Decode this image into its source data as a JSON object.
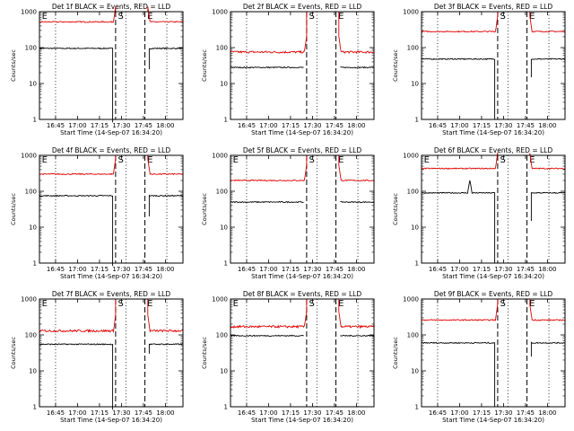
{
  "colors": {
    "events": "#000000",
    "lld": "#e00000",
    "axis": "#000000"
  },
  "chart_data": [
    {
      "type": "line",
      "title": "Det 1f BLACK = Events, RED = LLD",
      "xlabel": "Start Time (14-Sep-07 16:34:20)",
      "ylabel": "Counts/sec",
      "y_scale": "log",
      "ylim": [
        1,
        1000
      ],
      "xlim": [
        "16:34",
        "18:12"
      ],
      "xticks": [
        "16:45",
        "17:00",
        "17:15",
        "17:30",
        "17:45",
        "18:00"
      ],
      "yticks": [
        "1",
        "10",
        "100",
        "1000"
      ],
      "dotted_lines": [
        "16:45",
        "17:33",
        "18:01"
      ],
      "dashed_lines": [
        "17:26",
        "17:46"
      ],
      "markers": [
        {
          "label": "E",
          "x": "16:35"
        },
        {
          "label": "S",
          "x": "17:27"
        },
        {
          "label": "E",
          "x": "17:47"
        }
      ],
      "series": [
        {
          "name": "BLACK = Events",
          "color": "black",
          "level": 95,
          "gap": [
            "17:24",
            "17:49"
          ],
          "low_ends": [
            0.5,
            25
          ]
        },
        {
          "name": "RED = LLD",
          "color": "red",
          "level": 520,
          "gap": [
            "17:26",
            "17:48"
          ],
          "high_ends": [
            1000,
            1000
          ]
        }
      ]
    },
    {
      "type": "line",
      "title": "Det 2f BLACK = Events, RED = LLD",
      "xlabel": "Start Time (14-Sep-07 16:34:20)",
      "ylabel": "Counts/sec",
      "y_scale": "log",
      "ylim": [
        1,
        1000
      ],
      "xlim": [
        "16:34",
        "18:12"
      ],
      "xticks": [
        "16:45",
        "17:00",
        "17:15",
        "17:30",
        "17:45",
        "18:00"
      ],
      "yticks": [
        "1",
        "10",
        "100",
        "1000"
      ],
      "dotted_lines": [
        "16:45",
        "17:33",
        "18:01"
      ],
      "dashed_lines": [
        "17:26",
        "17:46"
      ],
      "markers": [
        {
          "label": "S",
          "x": "17:27"
        },
        {
          "label": "E",
          "x": "17:47"
        }
      ],
      "series": [
        {
          "name": "BLACK = Events",
          "color": "black",
          "level": 28,
          "gap": [
            "17:24",
            "17:49"
          ]
        },
        {
          "name": "RED = LLD",
          "color": "red",
          "level": 75,
          "gap": [
            "17:26",
            "17:48"
          ],
          "high_ends": [
            1000,
            1000
          ]
        }
      ]
    },
    {
      "type": "line",
      "title": "Det 3f BLACK = Events, RED = LLD",
      "xlabel": "Start Time (14-Sep-07 16:34:20)",
      "ylabel": "Counts/sec",
      "y_scale": "log",
      "ylim": [
        1,
        1000
      ],
      "xlim": [
        "16:34",
        "18:12"
      ],
      "xticks": [
        "16:45",
        "17:00",
        "17:15",
        "17:30",
        "17:45",
        "18:00"
      ],
      "yticks": [
        "1",
        "10",
        "100",
        "1000"
      ],
      "dotted_lines": [
        "16:45",
        "17:33",
        "18:01"
      ],
      "dashed_lines": [
        "17:26",
        "17:46"
      ],
      "markers": [
        {
          "label": "S",
          "x": "17:27"
        },
        {
          "label": "E",
          "x": "17:47"
        }
      ],
      "series": [
        {
          "name": "BLACK = Events",
          "color": "black",
          "level": 48,
          "gap": [
            "17:24",
            "17:49"
          ],
          "low_ends": [
            1,
            15
          ]
        },
        {
          "name": "RED = LLD",
          "color": "red",
          "level": 280,
          "gap": [
            "17:26",
            "17:48"
          ],
          "high_ends": [
            1000,
            1000
          ]
        }
      ]
    },
    {
      "type": "line",
      "title": "Det 4f BLACK = Events, RED = LLD",
      "xlabel": "Start Time (14-Sep-07 16:34:20)",
      "ylabel": "Counts/sec",
      "y_scale": "log",
      "ylim": [
        1,
        1000
      ],
      "xlim": [
        "16:34",
        "18:12"
      ],
      "xticks": [
        "16:45",
        "17:00",
        "17:15",
        "17:30",
        "17:45",
        "18:00"
      ],
      "yticks": [
        "1",
        "10",
        "100",
        "1000"
      ],
      "dotted_lines": [
        "16:45",
        "17:33",
        "18:01"
      ],
      "dashed_lines": [
        "17:26",
        "17:46"
      ],
      "markers": [
        {
          "label": "E",
          "x": "16:35"
        },
        {
          "label": "S",
          "x": "17:27"
        },
        {
          "label": "E",
          "x": "17:47"
        }
      ],
      "series": [
        {
          "name": "BLACK = Events",
          "color": "black",
          "level": 75,
          "gap": [
            "17:24",
            "17:49"
          ],
          "low_ends": [
            0.5,
            20
          ]
        },
        {
          "name": "RED = LLD",
          "color": "red",
          "level": 300,
          "gap": [
            "17:26",
            "17:48"
          ],
          "high_ends": [
            1000,
            1000
          ]
        }
      ]
    },
    {
      "type": "line",
      "title": "Det 5f BLACK = Events, RED = LLD",
      "xlabel": "Start Time (14-Sep-07 16:34:20)",
      "ylabel": "Counts/sec",
      "y_scale": "log",
      "ylim": [
        1,
        1000
      ],
      "xlim": [
        "16:34",
        "18:12"
      ],
      "xticks": [
        "16:45",
        "17:00",
        "17:15",
        "17:30",
        "17:45",
        "18:00"
      ],
      "yticks": [
        "1",
        "10",
        "100",
        "1000"
      ],
      "dotted_lines": [
        "16:45",
        "17:33",
        "18:01"
      ],
      "dashed_lines": [
        "17:26",
        "17:46"
      ],
      "markers": [
        {
          "label": "E",
          "x": "16:35"
        },
        {
          "label": "S",
          "x": "17:27"
        },
        {
          "label": "E",
          "x": "17:47"
        }
      ],
      "series": [
        {
          "name": "BLACK = Events",
          "color": "black",
          "level": 50,
          "gap": [
            "17:24",
            "17:49"
          ]
        },
        {
          "name": "RED = LLD",
          "color": "red",
          "level": 200,
          "gap": [
            "17:26",
            "17:48"
          ],
          "high_ends": [
            1000,
            1000
          ]
        }
      ]
    },
    {
      "type": "line",
      "title": "Det 6f BLACK = Events, RED = LLD",
      "xlabel": "Start Time (14-Sep-07 16:34:20)",
      "ylabel": "Counts/sec",
      "y_scale": "log",
      "ylim": [
        1,
        1000
      ],
      "xlim": [
        "16:34",
        "18:12"
      ],
      "xticks": [
        "16:45",
        "17:00",
        "17:15",
        "17:30",
        "17:45",
        "18:00"
      ],
      "yticks": [
        "1",
        "10",
        "100",
        "1000"
      ],
      "dotted_lines": [
        "16:45",
        "17:33",
        "18:01"
      ],
      "dashed_lines": [
        "17:26",
        "17:46"
      ],
      "markers": [
        {
          "label": "E",
          "x": "16:35"
        },
        {
          "label": "S",
          "x": "17:27"
        },
        {
          "label": "E",
          "x": "17:47"
        }
      ],
      "series": [
        {
          "name": "BLACK = Events",
          "color": "black",
          "level": 90,
          "gap": [
            "17:24",
            "17:49"
          ],
          "low_ends": [
            1,
            15
          ],
          "spike": {
            "x": "17:07",
            "peak": 200
          }
        },
        {
          "name": "RED = LLD",
          "color": "red",
          "level": 430,
          "gap": [
            "17:26",
            "17:48"
          ],
          "high_ends": [
            1000,
            1000
          ]
        }
      ]
    },
    {
      "type": "line",
      "title": "Det 7f BLACK = Events, RED = LLD",
      "xlabel": "Start Time (14-Sep-07 16:34:20)",
      "ylabel": "Counts/sec",
      "y_scale": "log",
      "ylim": [
        1,
        1000
      ],
      "xlim": [
        "16:34",
        "18:12"
      ],
      "xticks": [
        "16:45",
        "17:00",
        "17:15",
        "17:30",
        "17:45",
        "18:00"
      ],
      "yticks": [
        "1",
        "10",
        "100",
        "1000"
      ],
      "dotted_lines": [
        "16:45",
        "17:33",
        "18:01"
      ],
      "dashed_lines": [
        "17:26",
        "17:46"
      ],
      "markers": [
        {
          "label": "E",
          "x": "16:35"
        },
        {
          "label": "S",
          "x": "17:27"
        },
        {
          "label": "E",
          "x": "17:47"
        }
      ],
      "series": [
        {
          "name": "BLACK = Events",
          "color": "black",
          "level": 55,
          "gap": [
            "17:24",
            "17:49"
          ],
          "low_ends": [
            0.5,
            30
          ]
        },
        {
          "name": "RED = LLD",
          "color": "red",
          "level": 130,
          "gap": [
            "17:26",
            "17:48"
          ],
          "high_ends": [
            1000,
            1000
          ]
        }
      ]
    },
    {
      "type": "line",
      "title": "Det 8f BLACK = Events, RED = LLD",
      "xlabel": "Start Time (14-Sep-07 16:34:20)",
      "ylabel": "Counts/sec",
      "y_scale": "log",
      "ylim": [
        1,
        1000
      ],
      "xlim": [
        "16:34",
        "18:12"
      ],
      "xticks": [
        "16:45",
        "17:00",
        "17:15",
        "17:30",
        "17:45",
        "18:00"
      ],
      "yticks": [
        "1",
        "10",
        "100",
        "1000"
      ],
      "dotted_lines": [
        "16:45",
        "17:33",
        "18:01"
      ],
      "dashed_lines": [
        "17:26",
        "17:46"
      ],
      "markers": [
        {
          "label": "E",
          "x": "16:35"
        },
        {
          "label": "S",
          "x": "17:27"
        },
        {
          "label": "E",
          "x": "17:47"
        }
      ],
      "series": [
        {
          "name": "BLACK = Events",
          "color": "black",
          "level": 95,
          "gap": [
            "17:24",
            "17:49"
          ]
        },
        {
          "name": "RED = LLD",
          "color": "red",
          "level": 170,
          "gap": [
            "17:26",
            "17:48"
          ],
          "high_ends": [
            1000,
            1000
          ]
        }
      ]
    },
    {
      "type": "line",
      "title": "Det 9f BLACK = Events, RED = LLD",
      "xlabel": "Start Time (14-Sep-07 16:34:20)",
      "ylabel": "Counts/sec",
      "y_scale": "log",
      "ylim": [
        1,
        1000
      ],
      "xlim": [
        "16:34",
        "18:12"
      ],
      "xticks": [
        "16:45",
        "17:00",
        "17:15",
        "17:30",
        "17:45",
        "18:00"
      ],
      "yticks": [
        "1",
        "10",
        "100",
        "1000"
      ],
      "dotted_lines": [
        "16:45",
        "17:33",
        "18:01"
      ],
      "dashed_lines": [
        "17:26",
        "17:46"
      ],
      "markers": [
        {
          "label": "S",
          "x": "17:27"
        },
        {
          "label": "E",
          "x": "17:47"
        }
      ],
      "series": [
        {
          "name": "BLACK = Events",
          "color": "black",
          "level": 60,
          "gap": [
            "17:24",
            "17:49"
          ],
          "low_ends": [
            1,
            25
          ]
        },
        {
          "name": "RED = LLD",
          "color": "red",
          "level": 260,
          "gap": [
            "17:26",
            "17:48"
          ],
          "high_ends": [
            1000,
            1000
          ]
        }
      ]
    }
  ]
}
